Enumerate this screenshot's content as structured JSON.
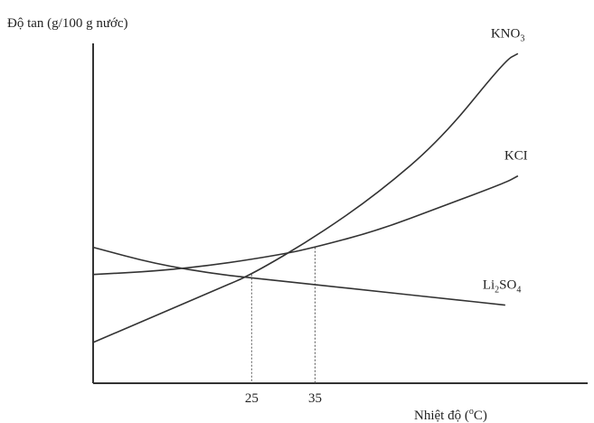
{
  "chart_data": {
    "type": "line",
    "title": "",
    "ylabel": "Độ tan (g/100 g nước)",
    "xlabel": {
      "main": "Nhiệt độ (",
      "superscript": "o",
      "unit": "C)"
    },
    "x_ticks": [
      "25",
      "35"
    ],
    "xlim": [
      0,
      78
    ],
    "ylim": [
      0,
      100
    ],
    "grid": false,
    "series": [
      {
        "name": "KNO3",
        "label": {
          "main": "KNO",
          "subscript": "3"
        },
        "color": "#333333",
        "points": [
          [
            0,
            12
          ],
          [
            10,
            20
          ],
          [
            20,
            28
          ],
          [
            25,
            32
          ],
          [
            35,
            43
          ],
          [
            45,
            56
          ],
          [
            55,
            72
          ],
          [
            65,
            95
          ],
          [
            67,
            97
          ]
        ]
      },
      {
        "name": "KCl",
        "label": {
          "main": "KCI"
        },
        "color": "#333333",
        "points": [
          [
            0,
            32
          ],
          [
            10,
            33
          ],
          [
            20,
            35
          ],
          [
            30,
            38
          ],
          [
            35,
            40
          ],
          [
            45,
            45
          ],
          [
            55,
            52
          ],
          [
            65,
            59
          ],
          [
            67,
            61
          ]
        ]
      },
      {
        "name": "Li2SO4",
        "label": {
          "main": "Li",
          "subscript": "2",
          "main2": "SO",
          "subscript2": "4"
        },
        "color": "#333333",
        "points": [
          [
            0,
            40
          ],
          [
            10,
            35
          ],
          [
            20,
            32
          ],
          [
            25,
            31
          ],
          [
            35,
            29
          ],
          [
            45,
            27
          ],
          [
            55,
            25
          ],
          [
            65,
            23
          ]
        ]
      }
    ],
    "reference_lines": [
      {
        "x": 25,
        "y": 32
      },
      {
        "x": 35,
        "y": 40
      }
    ]
  }
}
